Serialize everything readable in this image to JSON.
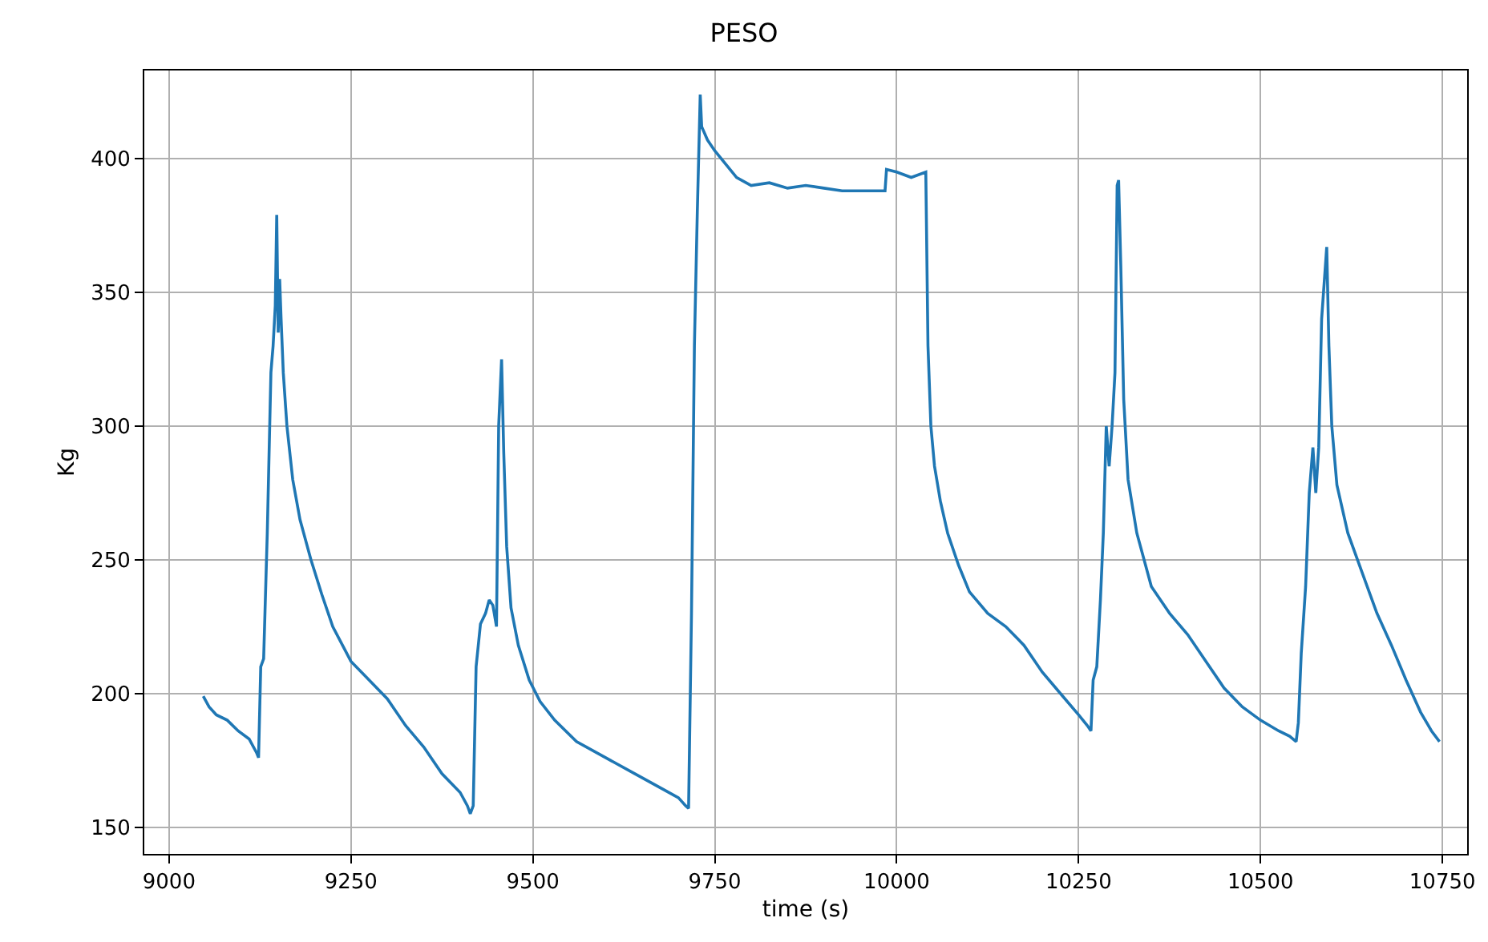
{
  "chart_data": {
    "type": "line",
    "title": "PESO",
    "xlabel": "time (s)",
    "ylabel": "Kg",
    "xlim": [
      8966,
      10784
    ],
    "ylim": [
      140,
      433
    ],
    "xticks": [
      9000,
      9250,
      9500,
      9750,
      10000,
      10250,
      10500,
      10750
    ],
    "yticks": [
      150,
      200,
      250,
      300,
      350,
      400
    ],
    "grid": true,
    "marker": "none",
    "line_style": "solid",
    "series": [
      {
        "color": "#1f77b4",
        "x": [
          9047,
          9055,
          9065,
          9080,
          9095,
          9110,
          9120,
          9123,
          9126,
          9130,
          9135,
          9140,
          9143,
          9146,
          9148,
          9150,
          9152,
          9154,
          9157,
          9162,
          9170,
          9180,
          9195,
          9210,
          9225,
          9250,
          9275,
          9300,
          9325,
          9350,
          9375,
          9400,
          9410,
          9414,
          9418,
          9422,
          9428,
          9435,
          9440,
          9445,
          9450,
          9453,
          9457,
          9460,
          9464,
          9470,
          9480,
          9495,
          9510,
          9530,
          9560,
          9600,
          9640,
          9680,
          9700,
          9710,
          9714,
          9718,
          9722,
          9726,
          9730,
          9732,
          9740,
          9750,
          9765,
          9780,
          9800,
          9825,
          9850,
          9875,
          9900,
          9925,
          9950,
          9970,
          9984,
          9986,
          10000,
          10020,
          10040,
          10043,
          10047,
          10052,
          10060,
          10070,
          10085,
          10100,
          10125,
          10150,
          10175,
          10200,
          10225,
          10250,
          10262,
          10267,
          10270,
          10275,
          10280,
          10284,
          10288,
          10292,
          10296,
          10300,
          10303,
          10305,
          10308,
          10312,
          10318,
          10330,
          10350,
          10375,
          10400,
          10425,
          10450,
          10475,
          10500,
          10525,
          10540,
          10549,
          10552,
          10556,
          10562,
          10567,
          10572,
          10576,
          10580,
          10584,
          10591,
          10594,
          10598,
          10605,
          10620,
          10640,
          10660,
          10680,
          10700,
          10720,
          10735,
          10746
        ],
        "values": [
          199,
          195,
          192,
          190,
          186,
          183,
          178,
          176,
          210,
          213,
          260,
          320,
          330,
          345,
          379,
          335,
          355,
          340,
          320,
          300,
          280,
          265,
          250,
          237,
          225,
          212,
          205,
          198,
          188,
          180,
          170,
          163,
          158,
          155,
          158,
          210,
          226,
          230,
          235,
          233,
          225,
          300,
          325,
          290,
          255,
          232,
          218,
          205,
          197,
          190,
          182,
          176,
          170,
          164,
          161,
          158,
          157,
          230,
          330,
          380,
          424,
          412,
          407,
          403,
          398,
          393,
          390,
          391,
          389,
          390,
          389,
          388,
          388,
          388,
          388,
          396,
          395,
          393,
          395,
          330,
          300,
          285,
          272,
          260,
          248,
          238,
          230,
          225,
          218,
          208,
          200,
          192,
          188,
          186,
          205,
          210,
          235,
          260,
          300,
          285,
          300,
          320,
          390,
          392,
          360,
          310,
          280,
          260,
          240,
          230,
          222,
          212,
          202,
          195,
          190,
          186,
          184,
          182,
          189,
          215,
          240,
          275,
          292,
          275,
          292,
          340,
          367,
          330,
          300,
          278,
          260,
          245,
          230,
          218,
          205,
          193,
          186,
          182
        ]
      }
    ]
  }
}
